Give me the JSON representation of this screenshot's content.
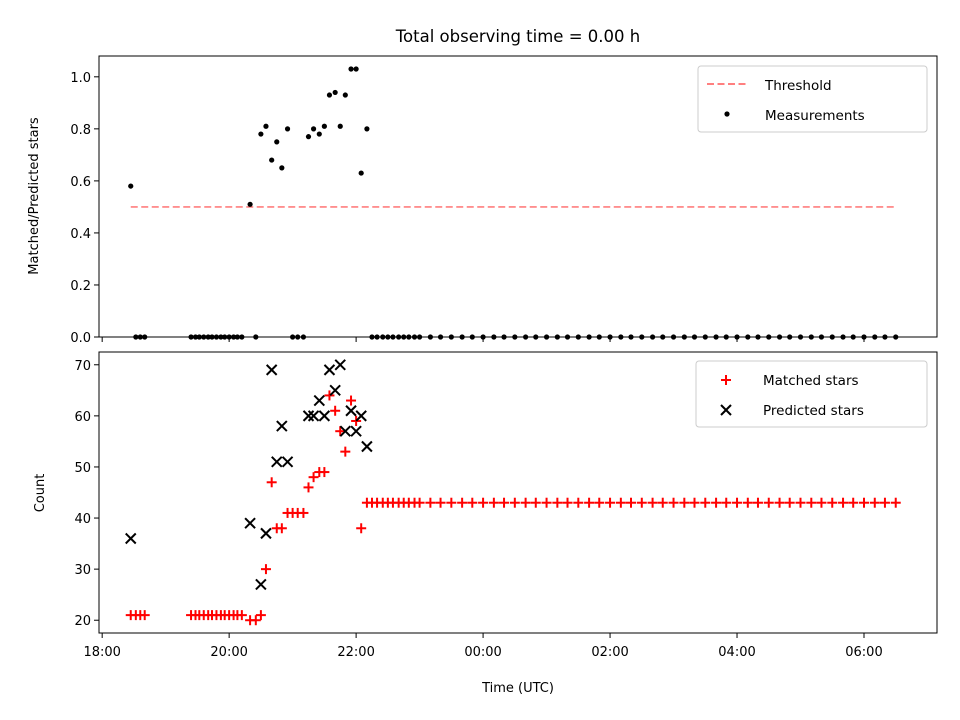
{
  "chart_data": [
    {
      "type": "scatter",
      "title": "Total observing time = 0.00 h",
      "ylabel": "Matched/Predicted stars",
      "ylim": [
        0,
        1.08
      ],
      "yticks": [
        0.0,
        0.2,
        0.4,
        0.6,
        0.8,
        1.0
      ],
      "ytick_labels": [
        "0.0",
        "0.2",
        "0.4",
        "0.6",
        "0.8",
        "1.0"
      ],
      "xlim_hours": [
        17.95,
        31.15
      ],
      "legend": {
        "placement": "top-right",
        "entries": [
          {
            "name": "Threshold",
            "marker": "dashed-line",
            "color": "#ff7f7f"
          },
          {
            "name": "Measurements",
            "marker": "dot",
            "color": "#000000"
          }
        ]
      },
      "series": [
        {
          "name": "Threshold",
          "kind": "line",
          "color": "#ff7f7f",
          "style": "dashed",
          "x_hours": [
            18.45,
            30.5
          ],
          "values": [
            0.5,
            0.5
          ]
        },
        {
          "name": "Measurements",
          "kind": "scatter",
          "color": "#000000",
          "marker": "dot",
          "x_hours": [
            18.45,
            18.53,
            18.6,
            18.67,
            19.4,
            19.47,
            19.53,
            19.6,
            19.67,
            19.73,
            19.8,
            19.87,
            19.93,
            20.0,
            20.07,
            20.13,
            20.2,
            20.33,
            20.42,
            20.5,
            20.58,
            20.67,
            20.75,
            20.83,
            20.92,
            21.0,
            21.08,
            21.17,
            21.25,
            21.33,
            21.42,
            21.5,
            21.58,
            21.67,
            21.75,
            21.83,
            21.92,
            22.0,
            22.08,
            22.17,
            22.25,
            22.33,
            22.42,
            22.5,
            22.58,
            22.67,
            22.75,
            22.83,
            22.92,
            23.0,
            23.17,
            23.33,
            23.5,
            23.67,
            23.83,
            24.0,
            24.17,
            24.33,
            24.5,
            24.67,
            24.83,
            25.0,
            25.17,
            25.33,
            25.5,
            25.67,
            25.83,
            26.0,
            26.17,
            26.33,
            26.5,
            26.67,
            26.83,
            27.0,
            27.17,
            27.33,
            27.5,
            27.67,
            27.83,
            28.0,
            28.17,
            28.33,
            28.5,
            28.67,
            28.83,
            29.0,
            29.17,
            29.33,
            29.5,
            29.67,
            29.83,
            30.0,
            30.17,
            30.33,
            30.5
          ],
          "values": [
            0.58,
            0,
            0,
            0,
            0,
            0,
            0,
            0,
            0,
            0,
            0,
            0,
            0,
            0,
            0,
            0,
            0,
            0.51,
            0,
            0.78,
            0.81,
            0.68,
            0.75,
            0.65,
            0.8,
            0,
            0,
            0,
            0.77,
            0.8,
            0.78,
            0.81,
            0.93,
            0.94,
            0.81,
            0.93,
            1.03,
            1.03,
            0.63,
            0.8,
            0,
            0,
            0,
            0,
            0,
            0,
            0,
            0,
            0,
            0,
            0,
            0,
            0,
            0,
            0,
            0,
            0,
            0,
            0,
            0,
            0,
            0,
            0,
            0,
            0,
            0,
            0,
            0,
            0,
            0,
            0,
            0,
            0,
            0,
            0,
            0,
            0,
            0,
            0,
            0,
            0,
            0,
            0,
            0,
            0,
            0,
            0,
            0,
            0,
            0,
            0,
            0,
            0,
            0,
            0
          ]
        }
      ]
    },
    {
      "type": "scatter",
      "xlabel": "Time (UTC)",
      "ylabel": "Count",
      "ylim": [
        17.5,
        72.5
      ],
      "yticks": [
        20,
        30,
        40,
        50,
        60,
        70
      ],
      "ytick_labels": [
        "20",
        "30",
        "40",
        "50",
        "60",
        "70"
      ],
      "xlim_hours": [
        17.95,
        31.15
      ],
      "xticks_hours": [
        18,
        20,
        22,
        24,
        26,
        28,
        30
      ],
      "xtick_labels": [
        "18:00",
        "20:00",
        "22:00",
        "00:00",
        "02:00",
        "04:00",
        "06:00"
      ],
      "legend": {
        "placement": "top-right",
        "entries": [
          {
            "name": "Matched stars",
            "marker": "plus",
            "color": "#ff0000"
          },
          {
            "name": "Predicted stars",
            "marker": "x",
            "color": "#000000"
          }
        ]
      },
      "series": [
        {
          "name": "Matched stars",
          "kind": "scatter",
          "color": "#ff0000",
          "marker": "plus",
          "x_hours": [
            18.45,
            18.53,
            18.6,
            18.67,
            19.4,
            19.47,
            19.53,
            19.6,
            19.67,
            19.73,
            19.8,
            19.87,
            19.93,
            20.0,
            20.07,
            20.13,
            20.2,
            20.33,
            20.42,
            20.5,
            20.58,
            20.67,
            20.75,
            20.83,
            20.92,
            21.0,
            21.08,
            21.17,
            21.25,
            21.33,
            21.42,
            21.5,
            21.58,
            21.67,
            21.75,
            21.83,
            21.92,
            22.0,
            22.08,
            22.17,
            22.25,
            22.33,
            22.42,
            22.5,
            22.58,
            22.67,
            22.75,
            22.83,
            22.92,
            23.0,
            23.17,
            23.33,
            23.5,
            23.67,
            23.83,
            24.0,
            24.17,
            24.33,
            24.5,
            24.67,
            24.83,
            25.0,
            25.17,
            25.33,
            25.5,
            25.67,
            25.83,
            26.0,
            26.17,
            26.33,
            26.5,
            26.67,
            26.83,
            27.0,
            27.17,
            27.33,
            27.5,
            27.67,
            27.83,
            28.0,
            28.17,
            28.33,
            28.5,
            28.67,
            28.83,
            29.0,
            29.17,
            29.33,
            29.5,
            29.67,
            29.83,
            30.0,
            30.17,
            30.33,
            30.5
          ],
          "values": [
            21,
            21,
            21,
            21,
            21,
            21,
            21,
            21,
            21,
            21,
            21,
            21,
            21,
            21,
            21,
            21,
            21,
            20,
            20,
            21,
            30,
            47,
            38,
            38,
            41,
            41,
            41,
            41,
            46,
            48,
            49,
            49,
            64,
            61,
            57,
            53,
            63,
            59,
            38,
            43,
            43,
            43,
            43,
            43,
            43,
            43,
            43,
            43,
            43,
            43,
            43,
            43,
            43,
            43,
            43,
            43,
            43,
            43,
            43,
            43,
            43,
            43,
            43,
            43,
            43,
            43,
            43,
            43,
            43,
            43,
            43,
            43,
            43,
            43,
            43,
            43,
            43,
            43,
            43,
            43,
            43,
            43,
            43,
            43,
            43,
            43,
            43,
            43,
            43,
            43,
            43,
            43,
            43,
            43,
            43
          ]
        },
        {
          "name": "Predicted stars",
          "kind": "scatter",
          "color": "#000000",
          "marker": "x",
          "x_hours": [
            18.45,
            20.33,
            20.5,
            20.58,
            20.67,
            20.75,
            20.83,
            20.92,
            21.25,
            21.33,
            21.42,
            21.5,
            21.58,
            21.67,
            21.75,
            21.83,
            21.92,
            22.0,
            22.08,
            22.17
          ],
          "values": [
            36,
            39,
            27,
            37,
            69,
            51,
            58,
            51,
            60,
            60,
            63,
            60,
            69,
            65,
            70,
            57,
            61,
            57,
            60,
            54
          ]
        }
      ]
    }
  ]
}
